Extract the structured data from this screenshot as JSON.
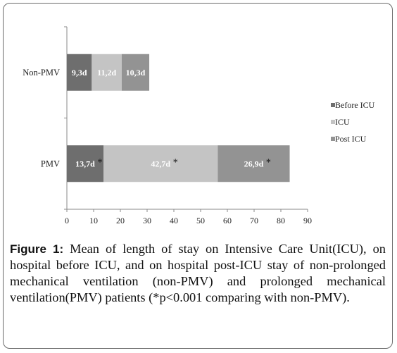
{
  "chart_data": {
    "type": "bar",
    "orientation": "horizontal",
    "stacked": true,
    "categories": [
      "Non-PMV",
      "PMV"
    ],
    "series": [
      {
        "name": "Before ICU",
        "values": [
          9.3,
          13.7
        ],
        "labels": [
          "9,3d",
          "13,7d"
        ],
        "color": "#6e6e6e"
      },
      {
        "name": "ICU",
        "values": [
          11.2,
          42.7
        ],
        "labels": [
          "11,2d",
          "42,7d"
        ],
        "color": "#c4c4c4"
      },
      {
        "name": "Post ICU",
        "values": [
          10.3,
          26.9
        ],
        "labels": [
          "10,3d",
          "26,9d"
        ],
        "color": "#939393"
      }
    ],
    "significance": {
      "PMV": [
        "*",
        "*",
        "*"
      ],
      "Non-PMV": [
        "",
        "",
        ""
      ]
    },
    "xlim": [
      0,
      90
    ],
    "xticks": [
      0,
      10,
      20,
      30,
      40,
      50,
      60,
      70,
      80,
      90
    ],
    "legend_position": "right",
    "grid": false
  },
  "caption": {
    "label": "Figure 1:",
    "text": "Mean of length of stay on Intensive Care Unit(ICU), on hospital before ICU, and on hospital post-ICU stay of non-prolonged mechanical ventilation (non-PMV) and prolonged mechanical ventilation(PMV) patients (*p<0.001 comparing with non-PMV)."
  }
}
